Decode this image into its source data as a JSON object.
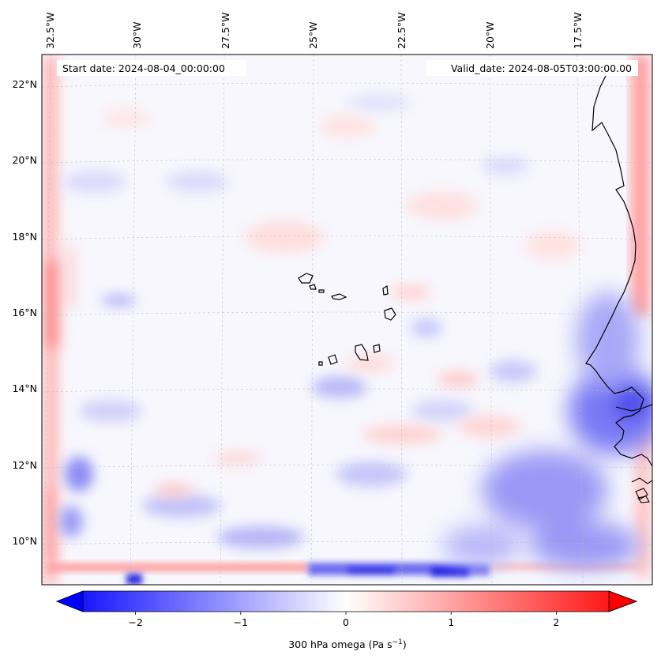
{
  "map": {
    "start_date": "Start date: 2024-08-04_00:00:00",
    "valid_date": "Valid_date: 2024-08-05T03:00:00.00",
    "lon_labels": [
      "32.5°W",
      "30°W",
      "27.5°W",
      "25°W",
      "22.5°W",
      "20°W",
      "17.5°W"
    ],
    "lat_labels": [
      "22°N",
      "20°N",
      "18°N",
      "16°N",
      "14°N",
      "12°N",
      "10°N"
    ],
    "colorbar": {
      "label_prefix": "300 hPa omega (Pa s",
      "label_exponent": "−1",
      "label_suffix": ")",
      "ticks": [
        "−2",
        "−1",
        "0",
        "1",
        "2"
      ],
      "min": -2.5,
      "max": 2.5,
      "low_color": "#0000ff",
      "mid_color": "#ffffff",
      "high_color": "#ff0000"
    }
  }
}
